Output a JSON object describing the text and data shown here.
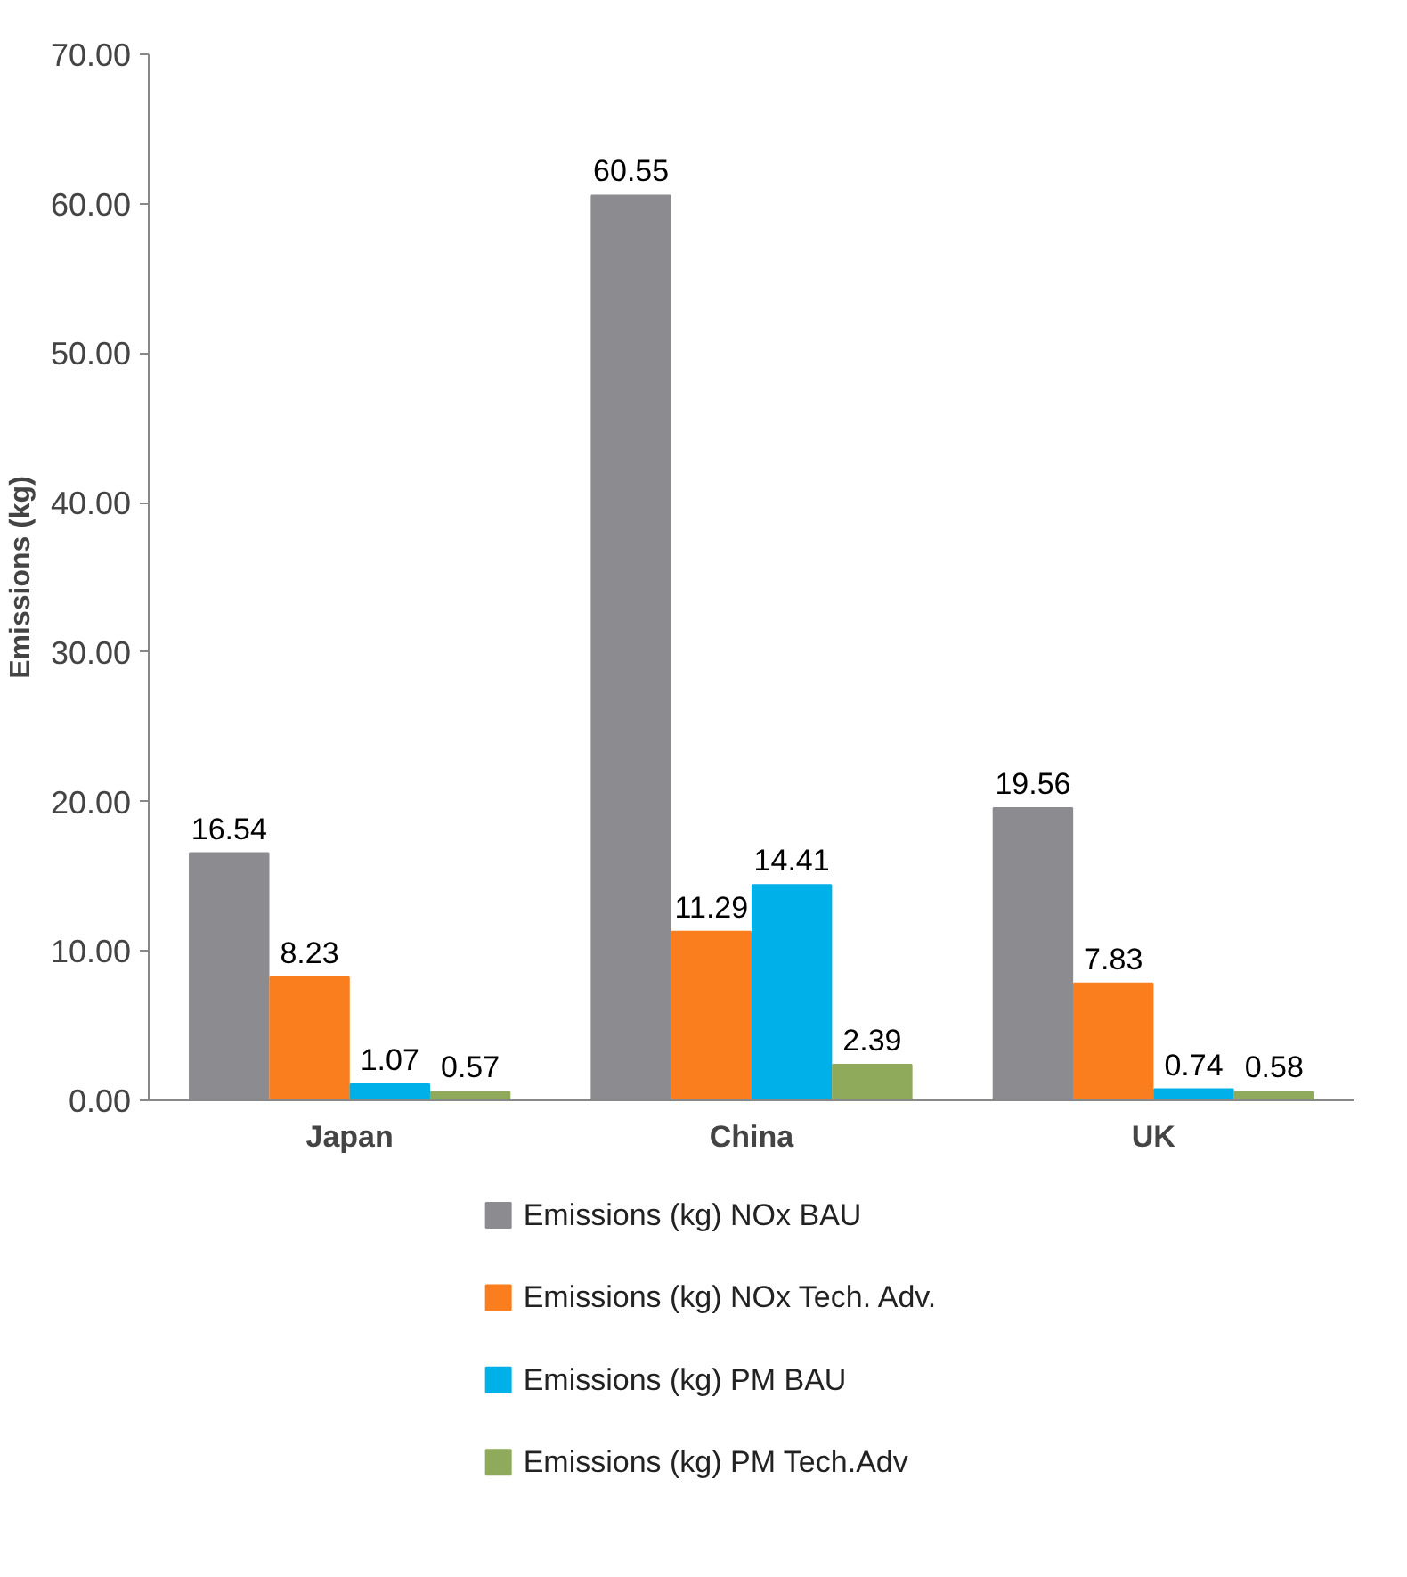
{
  "chart_data": {
    "type": "bar",
    "ylabel": "Emissions (kg)",
    "categories": [
      "Japan",
      "China",
      "UK"
    ],
    "series": [
      {
        "name": "Emissions (kg) NOx BAU",
        "color": "#8c8c90",
        "values": [
          16.54,
          60.55,
          19.56
        ]
      },
      {
        "name": "Emissions (kg) NOx Tech. Adv.",
        "color": "#fb7e1e",
        "values": [
          8.23,
          11.29,
          7.83
        ]
      },
      {
        "name": "Emissions (kg) PM BAU",
        "color": "#00b0e8",
        "values": [
          1.07,
          14.41,
          0.74
        ]
      },
      {
        "name": "Emissions (kg) PM Tech.Adv",
        "color": "#8faa5a",
        "values": [
          0.57,
          2.39,
          0.58
        ]
      }
    ],
    "ylim": [
      0,
      70
    ],
    "yticks": [
      {
        "value": 0,
        "label": "0.00"
      },
      {
        "value": 10,
        "label": "10.00"
      },
      {
        "value": 20,
        "label": "20.00"
      },
      {
        "value": 30,
        "label": "30.00"
      },
      {
        "value": 40,
        "label": "40.00"
      },
      {
        "value": 50,
        "label": "50.00"
      },
      {
        "value": 60,
        "label": "60.00"
      },
      {
        "value": 70,
        "label": "70.00"
      }
    ],
    "grid": false,
    "legend": "bottom",
    "data_labels": true
  }
}
